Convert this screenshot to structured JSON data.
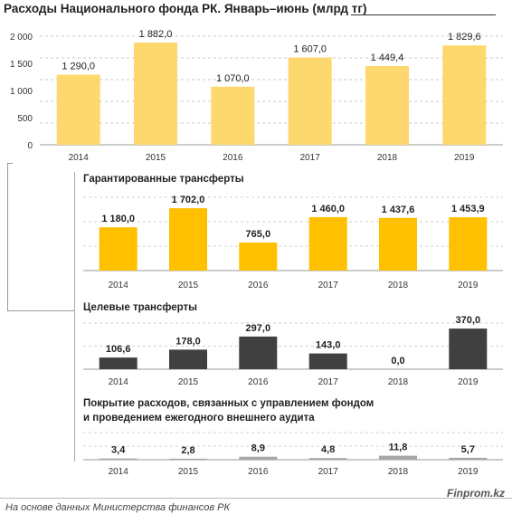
{
  "title": "Расходы Национального фонда РК. Январь–июнь (млрд тг)",
  "footer": {
    "source": "На основе данных Министерства финансов РК",
    "brand": "Finprom.kz"
  },
  "chart_data": [
    {
      "type": "bar",
      "title": "",
      "categories": [
        "2014",
        "2015",
        "2016",
        "2017",
        "2018",
        "2019"
      ],
      "values": [
        1290.0,
        1882.0,
        1070.0,
        1607.0,
        1449.4,
        1829.6
      ],
      "labels": [
        "1 290,0",
        "1 882,0",
        "1 070,0",
        "1 607,0",
        "1 449,4",
        "1 829,6"
      ],
      "ylim": [
        0,
        2000
      ],
      "yticks": [
        "0",
        "500",
        "1 000",
        "1 500",
        "2 000"
      ],
      "grid": true,
      "color": "#FDD86E"
    },
    {
      "type": "bar",
      "title": "Гарантированные  трансферты",
      "categories": [
        "2014",
        "2015",
        "2016",
        "2017",
        "2018",
        "2019"
      ],
      "values": [
        1180.0,
        1702.0,
        765.0,
        1460.0,
        1437.6,
        1453.9
      ],
      "labels": [
        "1 180,0",
        "1 702,0",
        "765,0",
        "1 460,0",
        "1 437,6",
        "1 453,9"
      ],
      "ylim": [
        0,
        2000
      ],
      "grid": true,
      "color": "#FFC000"
    },
    {
      "type": "bar",
      "title": "Целевые трансферты",
      "categories": [
        "2014",
        "2015",
        "2016",
        "2017",
        "2018",
        "2019"
      ],
      "values": [
        106.6,
        178.0,
        297.0,
        143.0,
        0.0,
        370.0
      ],
      "labels": [
        "106,6",
        "178,0",
        "297,0",
        "143,0",
        "0,0",
        "370,0"
      ],
      "ylim": [
        0,
        420
      ],
      "grid": true,
      "color": "#404040"
    },
    {
      "type": "bar",
      "title": "Покрытие  расходов,  связанных  с управлением фондом\nи проведением  ежегодного внешнего аудита",
      "categories": [
        "2014",
        "2015",
        "2016",
        "2017",
        "2018",
        "2019"
      ],
      "values": [
        3.4,
        2.8,
        8.9,
        4.8,
        11.8,
        5.7
      ],
      "labels": [
        "3,4",
        "2,8",
        "8,9",
        "4,8",
        "11,8",
        "5,7"
      ],
      "ylim": [
        0,
        80
      ],
      "grid": true,
      "color": "#A6A6A6"
    }
  ]
}
